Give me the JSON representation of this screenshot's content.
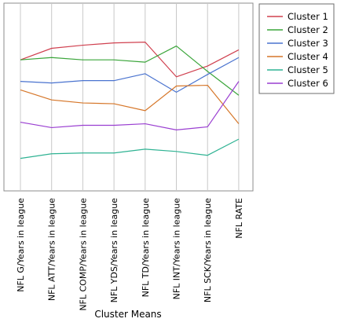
{
  "chart_data": {
    "type": "line",
    "xlabel": "Cluster Means",
    "ylabel": "",
    "grid": true,
    "legend_position": "right",
    "categories": [
      "NFL G/Years in league",
      "NFL ATT/Years in league",
      "NFL COMP/Years in league",
      "NFL YDS/Years in league",
      "NFL TD/Years in league",
      "NFL INT/Years in league",
      "NFL SCK/Years in league",
      "NFL RATE"
    ],
    "ylim": [
      0,
      100
    ],
    "series": [
      {
        "name": "Cluster 1",
        "color": "#d0404f",
        "values": [
          80,
          87.5,
          89.5,
          91,
          91.5,
          69,
          76,
          86.5
        ]
      },
      {
        "name": "Cluster 2",
        "color": "#3aa53a",
        "values": [
          80,
          81.5,
          80,
          80,
          78.5,
          89,
          72.5,
          57
        ]
      },
      {
        "name": "Cluster 3",
        "color": "#4a73cf",
        "values": [
          66,
          65,
          66.5,
          66.5,
          71,
          59,
          70.5,
          81.5
        ]
      },
      {
        "name": "Cluster 4",
        "color": "#d6772a",
        "values": [
          60.5,
          54,
          52,
          51.5,
          47,
          63,
          63.5,
          38.5
        ]
      },
      {
        "name": "Cluster 5",
        "color": "#2fb393",
        "values": [
          16,
          19,
          19.5,
          19.5,
          22,
          20.5,
          18,
          28.5
        ]
      },
      {
        "name": "Cluster 6",
        "color": "#9a3fd1",
        "values": [
          39.5,
          36,
          37.5,
          37.5,
          38.5,
          34.5,
          36.5,
          66
        ]
      }
    ]
  }
}
